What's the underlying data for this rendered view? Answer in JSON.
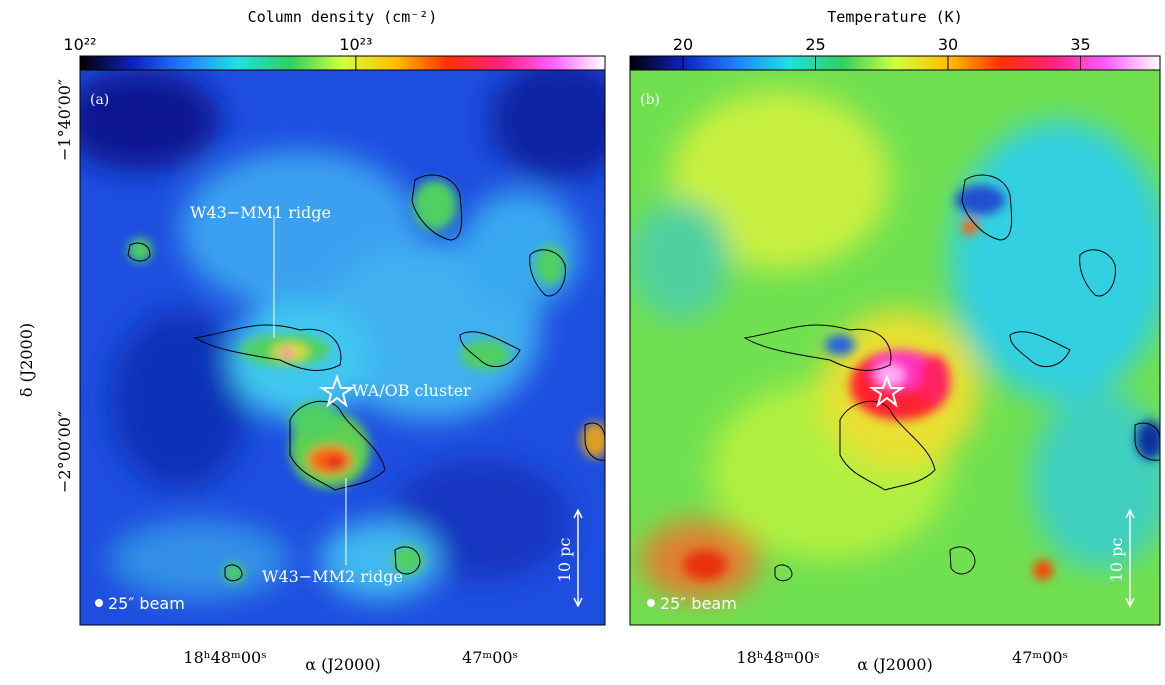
{
  "panels": [
    {
      "label": "(a)",
      "colorbar": {
        "title": "Column density (cm⁻²)",
        "scale": "log",
        "lim": [
          1e+22,
          8e+23
        ],
        "ticks": [
          {
            "value": 1e+22,
            "label": "10²²"
          },
          {
            "value": 1e+23,
            "label": "10²³"
          }
        ],
        "colors": [
          "#000000",
          "#1020c0",
          "#2080ff",
          "#20e0e0",
          "#30d060",
          "#d0ff40",
          "#ffc000",
          "#ff3000",
          "#ff2080",
          "#ff60ff",
          "#ffffff"
        ]
      },
      "annotations": [
        "W43−MM1 ridge",
        "W43−MM2 ridge",
        "WA/OB cluster"
      ],
      "scale_bar": "10 pc",
      "beam": "25″ beam",
      "x_label": "α (J2000)",
      "y_label": "δ (J2000)",
      "x_ticks": [
        "18ʰ48ᵐ00ˢ",
        "47ᵐ00ˢ"
      ],
      "y_ticks": [
        "−1°40′00″",
        "−2°00′00″"
      ]
    },
    {
      "label": "(b)",
      "colorbar": {
        "title": "Temperature (K)",
        "scale": "linear",
        "lim": [
          18,
          38
        ],
        "ticks": [
          20,
          25,
          30,
          35
        ],
        "colors": [
          "#000000",
          "#1020c0",
          "#2080ff",
          "#20e0e0",
          "#30d060",
          "#d0ff40",
          "#ffc000",
          "#ff3000",
          "#ff2080",
          "#ff60ff",
          "#ffffff"
        ]
      },
      "scale_bar": "10 pc",
      "beam": "25″ beam",
      "x_label": "α (J2000)",
      "x_ticks": [
        "18ʰ48ᵐ00ˢ",
        "47ᵐ00ˢ"
      ]
    }
  ]
}
